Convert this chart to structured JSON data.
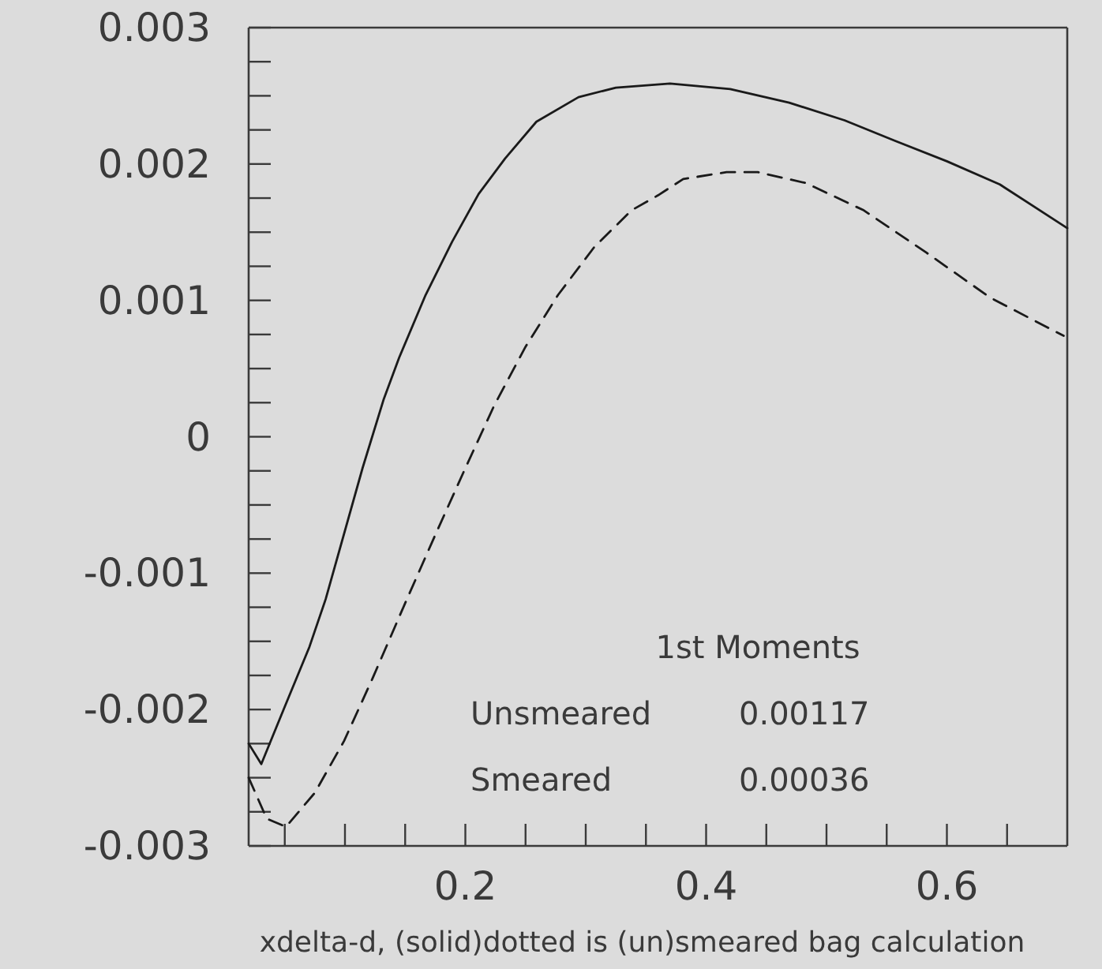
{
  "chart_data": {
    "type": "line",
    "xlabel": "xdelta-d, (solid)dotted is (un)smeared bag calculation",
    "annotations": [
      "1st Moments",
      "Unsmeared 0.00117",
      "Smeared 0.00036"
    ],
    "xlim": [
      0.02,
      0.7
    ],
    "ylim": [
      -0.003,
      0.003
    ],
    "xticks": [
      {
        "value": 0.05,
        "label": null
      },
      {
        "value": 0.1,
        "label": null
      },
      {
        "value": 0.15,
        "label": null
      },
      0.2,
      {
        "value": 0.25,
        "label": null
      },
      {
        "value": 0.3,
        "label": null
      },
      {
        "value": 0.35,
        "label": null
      },
      0.4,
      {
        "value": 0.45,
        "label": null
      },
      {
        "value": 0.5,
        "label": null
      },
      {
        "value": 0.55,
        "label": null
      },
      0.6,
      {
        "value": 0.65,
        "label": null
      }
    ],
    "yticks": [
      -0.003,
      {
        "value": -0.00275,
        "label": null
      },
      {
        "value": -0.0025,
        "label": null
      },
      {
        "value": -0.00225,
        "label": null
      },
      -0.002,
      {
        "value": -0.00175,
        "label": null
      },
      {
        "value": -0.0015,
        "label": null
      },
      {
        "value": -0.00125,
        "label": null
      },
      -0.001,
      {
        "value": -0.00075,
        "label": null
      },
      {
        "value": -0.0005,
        "label": null
      },
      {
        "value": -0.00025,
        "label": null
      },
      0,
      {
        "value": 0.00025,
        "label": null
      },
      {
        "value": 0.0005,
        "label": null
      },
      {
        "value": 0.00075,
        "label": null
      },
      0.001,
      {
        "value": 0.00125,
        "label": null
      },
      {
        "value": 0.0015,
        "label": null
      },
      {
        "value": 0.00175,
        "label": null
      },
      0.002,
      {
        "value": 0.00225,
        "label": null
      },
      {
        "value": 0.0025,
        "label": null
      },
      {
        "value": 0.00275,
        "label": null
      },
      0.003
    ],
    "grid": false,
    "series": [
      {
        "color": "#1a1a1a",
        "line_style": "solid",
        "x": [
          0.02,
          0.0305,
          0.049,
          0.0705,
          0.084,
          0.1146,
          0.132,
          0.145,
          0.167,
          0.189,
          0.211,
          0.233,
          0.259,
          0.294,
          0.325,
          0.37,
          0.42,
          0.469,
          0.515,
          0.557,
          0.6,
          0.644,
          0.7
        ],
        "values": [
          -0.00225,
          -0.0024,
          -0.002,
          -0.00154,
          -0.00119,
          -0.00023,
          0.00027,
          0.00058,
          0.00104,
          0.00143,
          0.00178,
          0.00204,
          0.00231,
          0.00249,
          0.00256,
          0.00259,
          0.00255,
          0.00245,
          0.00232,
          0.00217,
          0.00202,
          0.00185,
          0.00153
        ]
      },
      {
        "color": "#1a1a1a",
        "line_style": "dashed",
        "x": [
          0.02,
          0.035,
          0.051,
          0.075,
          0.0993,
          0.123,
          0.15,
          0.175,
          0.2,
          0.224,
          0.25,
          0.277,
          0.307,
          0.338,
          0.36,
          0.381,
          0.417,
          0.443,
          0.483,
          0.531,
          0.583,
          0.636,
          0.697
        ],
        "values": [
          -0.0025,
          -0.0028,
          -0.00286,
          -0.00261,
          -0.00223,
          -0.00177,
          -0.00122,
          -0.00072,
          -0.00023,
          0.00023,
          0.00066,
          0.00104,
          0.00139,
          0.00166,
          0.00177,
          0.00189,
          0.00194,
          0.00194,
          0.00186,
          0.00166,
          0.00135,
          0.00102,
          0.00074
        ]
      }
    ]
  }
}
